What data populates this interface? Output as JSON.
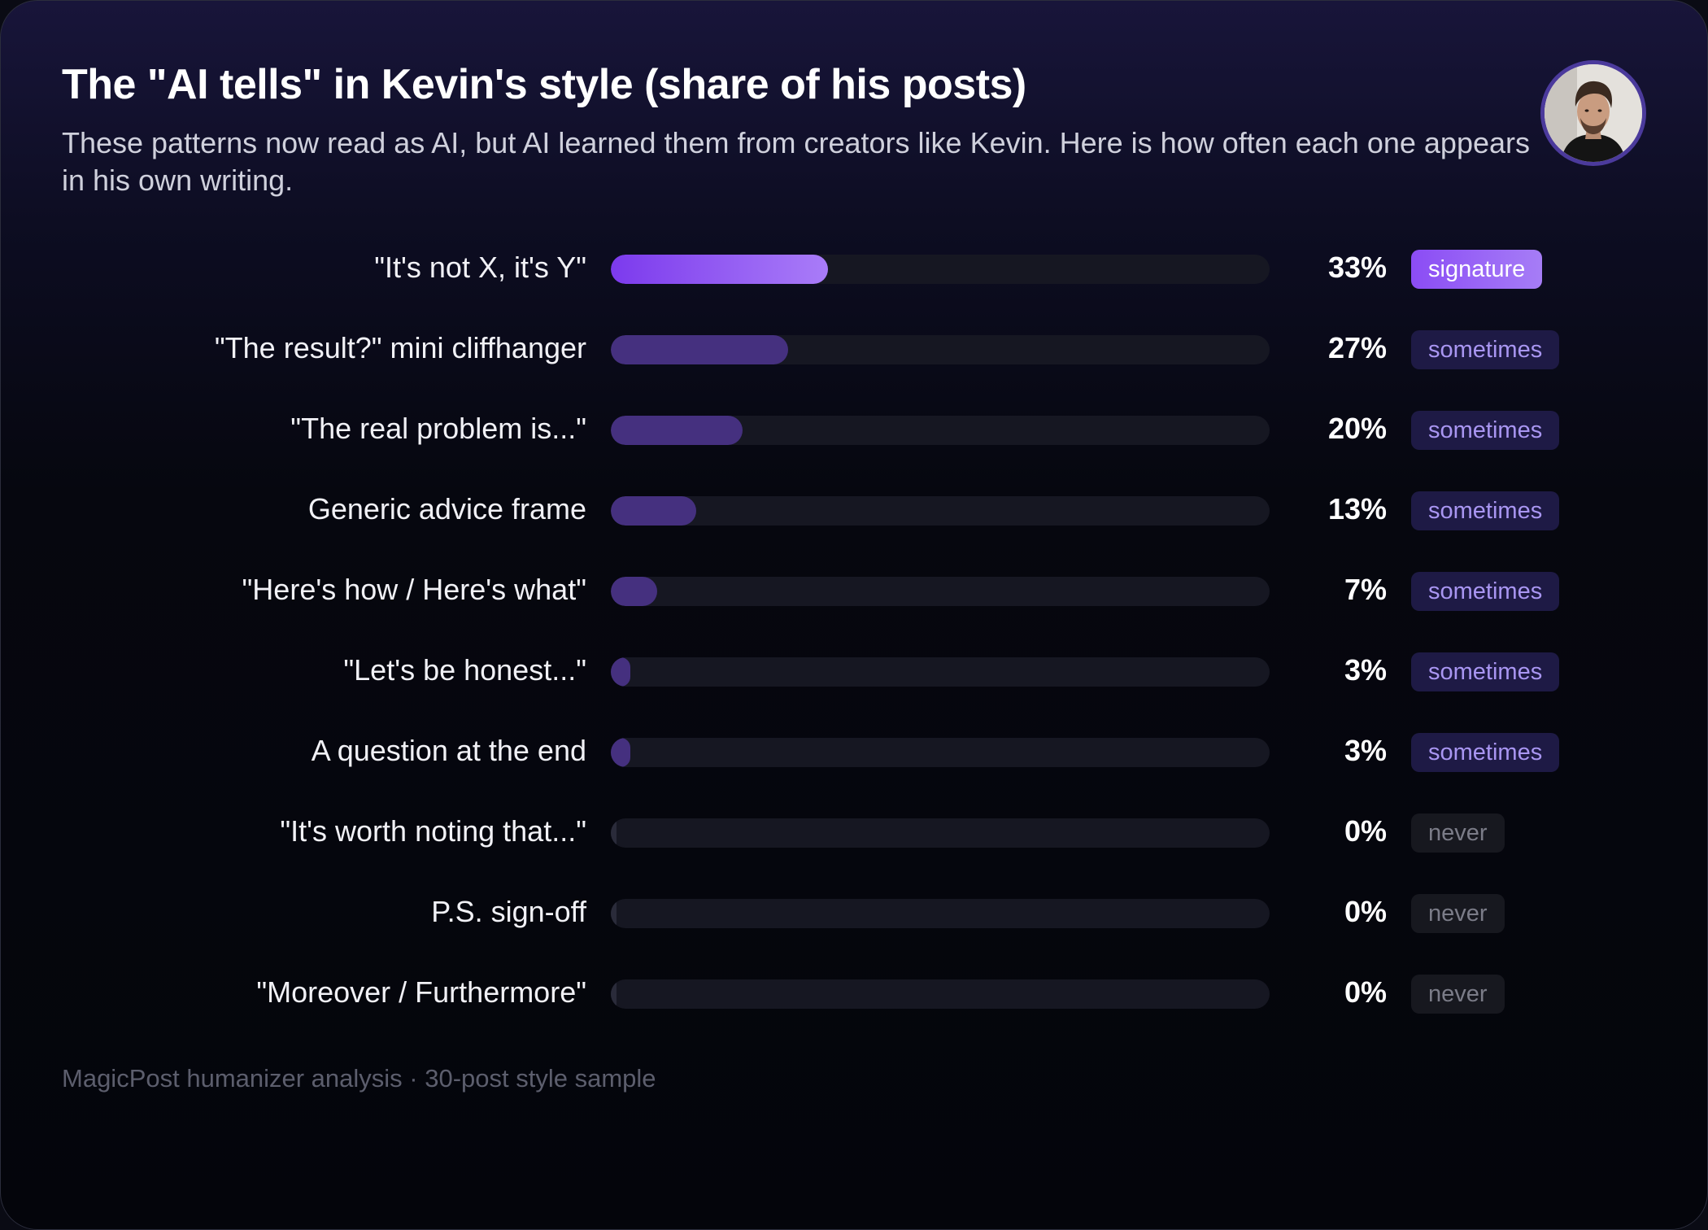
{
  "header": {
    "title": "The \"AI tells\" in Kevin's style (share of his posts)",
    "subtitle": "These patterns now read as AI, but AI learned them from creators like Kevin. Here is how often each one appears in his own writing."
  },
  "footer": {
    "source": "MagicPost humanizer analysis · 30-post style sample"
  },
  "colors": {
    "accent": "#7c3aed",
    "accent_light": "#a97cf8",
    "bar_default": "#45307f",
    "track": "#161722",
    "badge_sometimes_text": "#a996f2"
  },
  "chart_data": {
    "type": "bar",
    "orientation": "horizontal",
    "title": "The \"AI tells\" in Kevin's style (share of his posts)",
    "xlim": [
      0,
      100
    ],
    "grid": false,
    "categories": [
      "\"It's not X, it's Y\"",
      "\"The result?\" mini cliffhanger",
      "\"The real problem is...\"",
      "Generic advice frame",
      "\"Here's how / Here's what\"",
      "\"Let's be honest...\"",
      "A question at the end",
      "\"It's worth noting that...\"",
      "P.S. sign-off",
      "\"Moreover / Furthermore\""
    ],
    "values": [
      33,
      27,
      20,
      13,
      7,
      3,
      3,
      0,
      0,
      0
    ],
    "value_labels": [
      "33%",
      "27%",
      "20%",
      "13%",
      "7%",
      "3%",
      "3%",
      "0%",
      "0%",
      "0%"
    ],
    "tags": [
      "signature",
      "sometimes",
      "sometimes",
      "sometimes",
      "sometimes",
      "sometimes",
      "sometimes",
      "never",
      "never",
      "never"
    ]
  }
}
